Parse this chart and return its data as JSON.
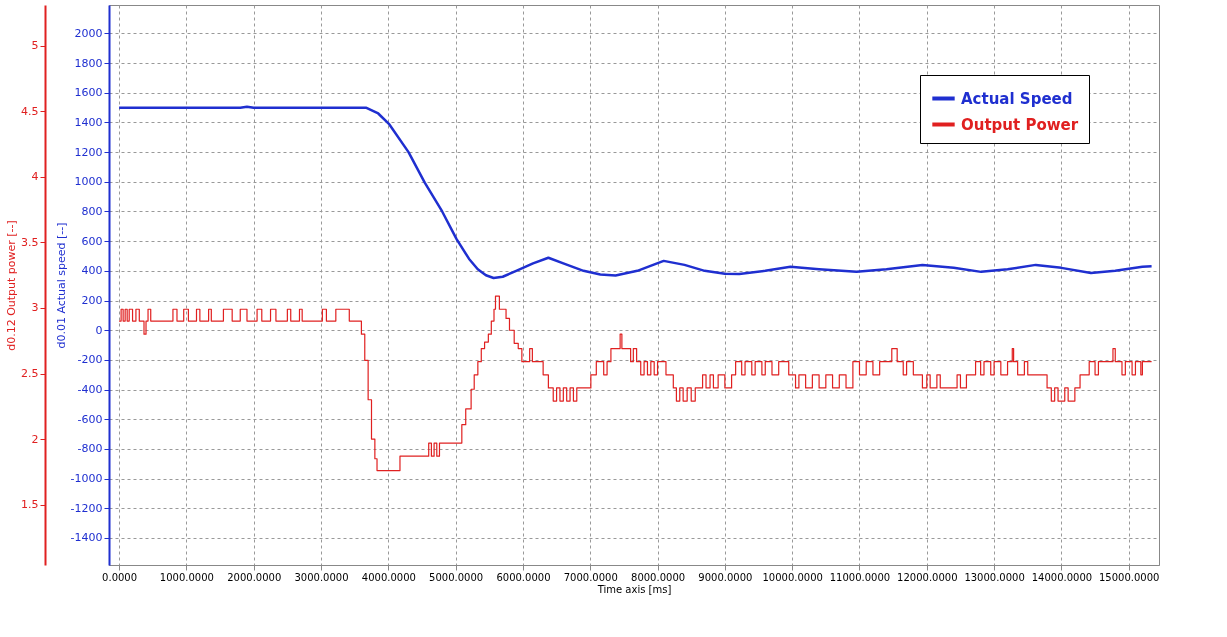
{
  "chart_data": {
    "type": "line",
    "xlabel": "Time axis [ms]",
    "ylabel": "d0.01 Actual speed [--]",
    "y2label": "d0.12 Output power [--]",
    "xlim": [
      -150,
      15450
    ],
    "xticks": [
      {
        "value": 0,
        "label": "0.0000"
      },
      {
        "value": 1000,
        "label": "1000.0000"
      },
      {
        "value": 2000,
        "label": "2000.0000"
      },
      {
        "value": 3000,
        "label": "3000.0000"
      },
      {
        "value": 4000,
        "label": "4000.0000"
      },
      {
        "value": 5000,
        "label": "5000.0000"
      },
      {
        "value": 6000,
        "label": "6000.0000"
      },
      {
        "value": 7000,
        "label": "7000.0000"
      },
      {
        "value": 8000,
        "label": "8000.0000"
      },
      {
        "value": 9000,
        "label": "9000.0000"
      },
      {
        "value": 10000,
        "label": "10000.0000"
      },
      {
        "value": 11000,
        "label": "11000.0000"
      },
      {
        "value": 12000,
        "label": "12000.0000"
      },
      {
        "value": 13000,
        "label": "13000.0000"
      },
      {
        "value": 14000,
        "label": "14000.0000"
      },
      {
        "value": 15000,
        "label": "15000.0000"
      }
    ],
    "ylim": [
      -1582,
      2191
    ],
    "yticks": [
      -1400,
      -1200,
      -1000,
      -800,
      -600,
      -400,
      -200,
      0,
      200,
      400,
      600,
      800,
      1000,
      1200,
      1400,
      1600,
      1800,
      2000
    ],
    "y2lim": [
      1.04,
      5.31
    ],
    "y2ticks": [
      1.5,
      2,
      2.5,
      3,
      3.5,
      4,
      4.5,
      5
    ],
    "grid": true,
    "legend": "top right",
    "series": [
      {
        "name": "Actual Speed",
        "color": "#1f2fd0",
        "x": [
          0,
          1000,
          1800,
          1900,
          2000,
          3000,
          3675,
          3850,
          4016,
          4300,
          4541,
          4800,
          5014,
          5200,
          5329,
          5450,
          5564,
          5700,
          5900,
          6150,
          6378,
          6600,
          6900,
          7150,
          7376,
          7700,
          8091,
          8400,
          8700,
          9000,
          9214,
          9600,
          9974,
          10400,
          10956,
          11400,
          11935,
          12400,
          12807,
          13200,
          13619,
          14000,
          14439,
          14800,
          15203,
          15340
        ],
        "values": [
          1498,
          1498,
          1498,
          1505,
          1498,
          1498,
          1498,
          1460,
          1386,
          1200,
          994,
          800,
          614,
          480,
          411,
          370,
          352,
          360,
          400,
          450,
          488,
          450,
          400,
          375,
          369,
          400,
          467,
          440,
          400,
          380,
          378,
          400,
          427,
          410,
          393,
          410,
          440,
          420,
          393,
          410,
          440,
          420,
          385,
          400,
          427,
          430
        ]
      },
      {
        "name": "Output Power",
        "color": "#e02020",
        "type": "step",
        "axis": "y2",
        "x": [
          0,
          30,
          60,
          90,
          120,
          150,
          200,
          250,
          300,
          370,
          400,
          430,
          470,
          800,
          860,
          960,
          1030,
          1150,
          1200,
          1330,
          1370,
          1550,
          1680,
          1800,
          1900,
          2050,
          2120,
          2250,
          2330,
          2500,
          2550,
          2680,
          2720,
          3020,
          3080,
          3220,
          3420,
          3544,
          3600,
          3650,
          3700,
          3750,
          3800,
          3832,
          4173,
          4600,
          4640,
          4680,
          4720,
          4760,
          4804,
          5092,
          5150,
          5230,
          5276,
          5330,
          5381,
          5430,
          5486,
          5530,
          5570,
          5592,
          5650,
          5749,
          5800,
          5870,
          5930,
          5984,
          6100,
          6140,
          6300,
          6378,
          6450,
          6500,
          6550,
          6600,
          6650,
          6700,
          6750,
          6800,
          6872,
          7009,
          7090,
          7200,
          7250,
          7307,
          7444,
          7470,
          7600,
          7640,
          7689,
          7750,
          7800,
          7850,
          7900,
          7950,
          8000,
          8125,
          8234,
          8280,
          8330,
          8380,
          8440,
          8500,
          8560,
          8669,
          8720,
          8780,
          8830,
          8900,
          9000,
          9100,
          9160,
          9250,
          9300,
          9400,
          9450,
          9550,
          9600,
          9700,
          9800,
          9949,
          10050,
          10100,
          10200,
          10300,
          10400,
          10500,
          10600,
          10700,
          10800,
          10902,
          11000,
          11100,
          11200,
          11300,
          11480,
          11560,
          11650,
          11700,
          11800,
          11935,
          12000,
          12050,
          12150,
          12200,
          12450,
          12500,
          12589,
          12725,
          12800,
          12850,
          12950,
          13000,
          13100,
          13200,
          13270,
          13290,
          13350,
          13450,
          13500,
          13787,
          13850,
          13900,
          13950,
          14050,
          14100,
          14200,
          14277,
          14413,
          14500,
          14550,
          14766,
          14800,
          14900,
          14950,
          15050,
          15100,
          15180,
          15203,
          15340
        ],
        "values": [
          2.9,
          2.99,
          2.9,
          2.99,
          2.9,
          2.99,
          2.9,
          2.99,
          2.9,
          2.8,
          2.9,
          2.99,
          2.9,
          2.99,
          2.9,
          2.99,
          2.9,
          2.99,
          2.9,
          2.99,
          2.9,
          2.99,
          2.9,
          2.99,
          2.9,
          2.99,
          2.9,
          2.99,
          2.9,
          2.99,
          2.9,
          2.99,
          2.9,
          2.99,
          2.9,
          2.99,
          2.9,
          2.9,
          2.8,
          2.6,
          2.3,
          2.0,
          1.85,
          1.76,
          1.87,
          1.97,
          1.87,
          1.97,
          1.87,
          1.97,
          1.97,
          2.11,
          2.23,
          2.38,
          2.49,
          2.59,
          2.69,
          2.74,
          2.8,
          2.9,
          2.99,
          3.09,
          2.99,
          2.92,
          2.83,
          2.73,
          2.69,
          2.59,
          2.69,
          2.59,
          2.49,
          2.39,
          2.29,
          2.39,
          2.29,
          2.39,
          2.29,
          2.39,
          2.29,
          2.39,
          2.39,
          2.49,
          2.59,
          2.49,
          2.59,
          2.69,
          2.8,
          2.69,
          2.59,
          2.69,
          2.59,
          2.49,
          2.59,
          2.49,
          2.59,
          2.49,
          2.59,
          2.49,
          2.39,
          2.29,
          2.39,
          2.29,
          2.39,
          2.29,
          2.39,
          2.49,
          2.39,
          2.49,
          2.39,
          2.49,
          2.39,
          2.49,
          2.59,
          2.49,
          2.59,
          2.49,
          2.59,
          2.49,
          2.59,
          2.49,
          2.59,
          2.49,
          2.39,
          2.49,
          2.39,
          2.49,
          2.39,
          2.49,
          2.39,
          2.49,
          2.39,
          2.59,
          2.49,
          2.59,
          2.49,
          2.59,
          2.69,
          2.59,
          2.49,
          2.59,
          2.49,
          2.39,
          2.49,
          2.39,
          2.49,
          2.39,
          2.49,
          2.39,
          2.49,
          2.59,
          2.49,
          2.59,
          2.49,
          2.59,
          2.49,
          2.59,
          2.69,
          2.59,
          2.49,
          2.59,
          2.49,
          2.39,
          2.29,
          2.39,
          2.29,
          2.39,
          2.29,
          2.39,
          2.49,
          2.59,
          2.49,
          2.59,
          2.69,
          2.59,
          2.49,
          2.59,
          2.49,
          2.59,
          2.49,
          2.59,
          2.59
        ]
      }
    ]
  }
}
